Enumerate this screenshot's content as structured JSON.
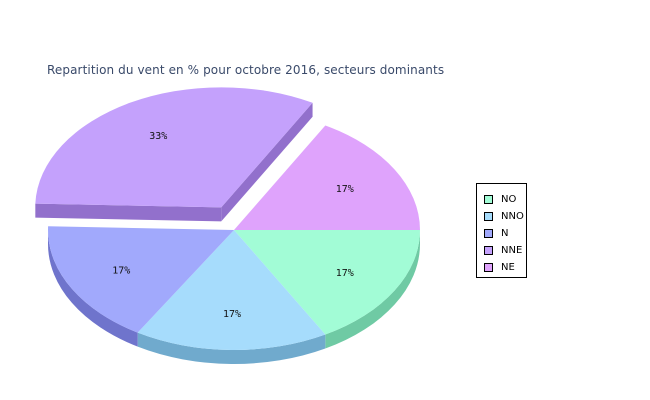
{
  "chart_data": {
    "type": "pie",
    "title": "Repartition du vent en % pour octobre 2016, secteurs dominants",
    "legend_position": "right",
    "slices": [
      {
        "name": "NO",
        "value": 17,
        "label": "17%",
        "color": "#a2fcd6",
        "side_color": "#6fcaa4"
      },
      {
        "name": "NNO",
        "value": 17,
        "label": "17%",
        "color": "#a6dcfc",
        "side_color": "#70aacd"
      },
      {
        "name": "N",
        "value": 17,
        "label": "17%",
        "color": "#a1a9fc",
        "side_color": "#6f74cc"
      },
      {
        "name": "NNE",
        "value": 33,
        "label": "33%",
        "color": "#c4a1fc",
        "side_color": "#9270cc",
        "exploded": true
      },
      {
        "name": "NE",
        "value": 17,
        "label": "17%",
        "color": "#dfa3fc",
        "side_color": "#ad72cc"
      }
    ]
  }
}
